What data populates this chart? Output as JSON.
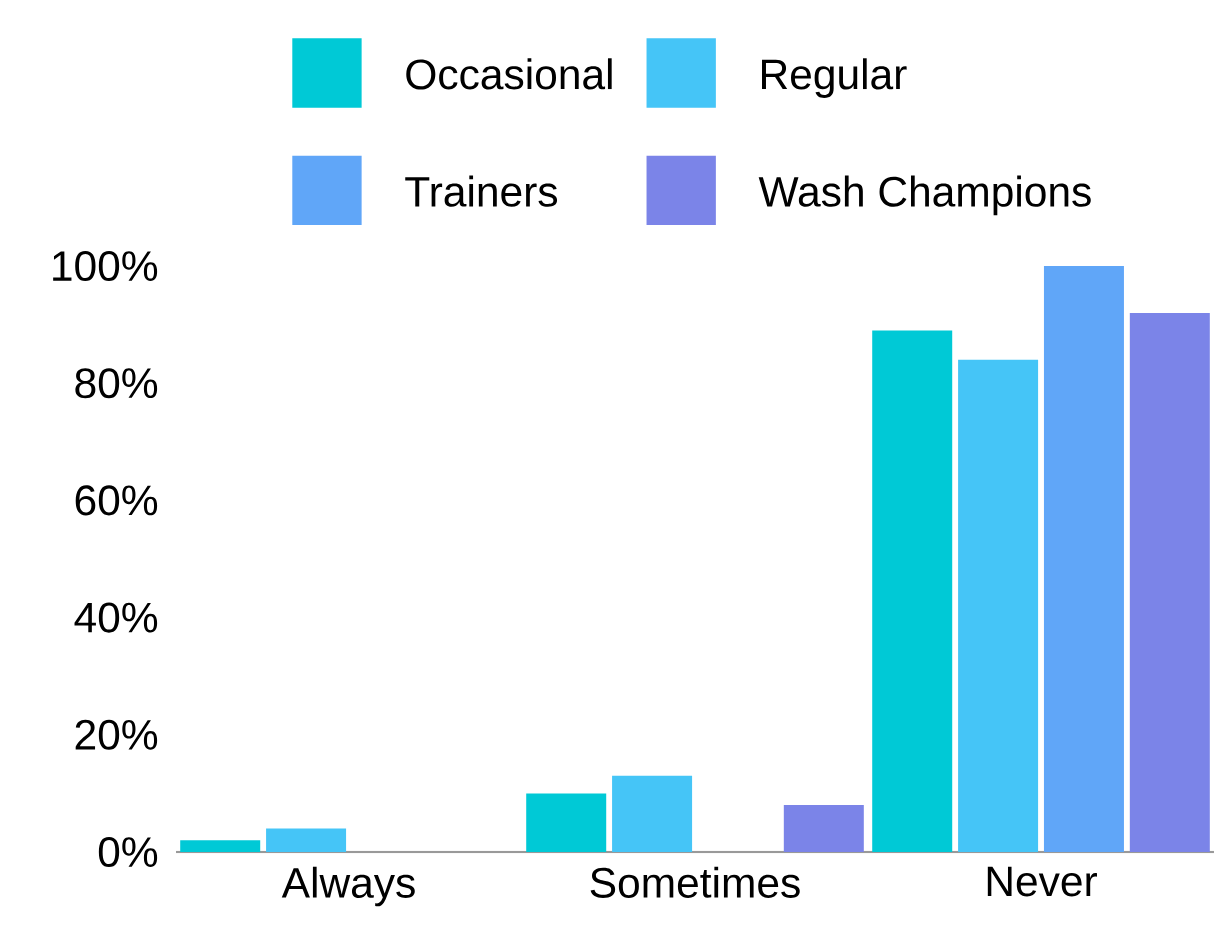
{
  "chart_data": {
    "type": "bar",
    "categories": [
      "Always",
      "Sometimes",
      "Never"
    ],
    "series": [
      {
        "name": "Occasional",
        "color": "#00c9d6",
        "values": [
          2,
          10,
          89
        ]
      },
      {
        "name": "Regular",
        "color": "#45c5f7",
        "values": [
          4,
          13,
          84
        ]
      },
      {
        "name": "Trainers",
        "color": "#60a6f8",
        "values": [
          0,
          0,
          100
        ]
      },
      {
        "name": "Wash Champions",
        "color": "#7b84e8",
        "values": [
          0,
          8,
          92
        ]
      }
    ],
    "ylim": [
      0,
      100
    ],
    "yticks": [
      {
        "value": 0,
        "label": "0%"
      },
      {
        "value": 20,
        "label": "20%"
      },
      {
        "value": 40,
        "label": "40%"
      },
      {
        "value": 60,
        "label": "60%"
      },
      {
        "value": 80,
        "label": "80%"
      },
      {
        "value": 100,
        "label": "100%"
      }
    ],
    "legend": "top"
  }
}
